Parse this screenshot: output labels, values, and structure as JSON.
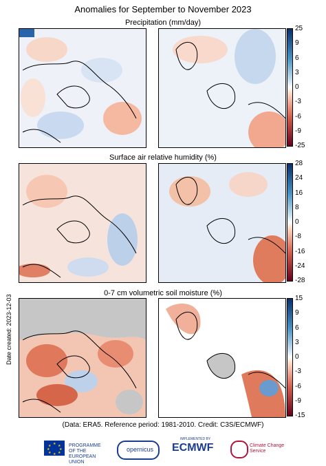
{
  "main_title": "Anomalies for September to November 2023",
  "panels": [
    {
      "title": "Precipitation (mm/day)",
      "ticks": [
        "25",
        "9",
        "6",
        "3",
        "0",
        "-3",
        "-6",
        "-9",
        "-25"
      ],
      "cbar": [
        "#08306b",
        "#2166ac",
        "#4393c3",
        "#92c5de",
        "#d1e5f0",
        "#fddbc7",
        "#f4a582",
        "#d6604d",
        "#b2182b",
        "#67001f"
      ]
    },
    {
      "title": "Surface air relative humidity (%)",
      "ticks": [
        "28",
        "24",
        "16",
        "8",
        "0",
        "-8",
        "-16",
        "-24",
        "-28"
      ],
      "cbar": [
        "#08306b",
        "#2166ac",
        "#4393c3",
        "#92c5de",
        "#d1e5f0",
        "#fddbc7",
        "#f4a582",
        "#d6604d",
        "#b2182b",
        "#67001f"
      ]
    },
    {
      "title": "0-7 cm volumetric soil moisture (%)",
      "ticks": [
        "15",
        "9",
        "6",
        "3",
        "0",
        "-3",
        "-6",
        "-9",
        "-15"
      ],
      "cbar": [
        "#08306b",
        "#2166ac",
        "#4393c3",
        "#92c5de",
        "#d1e5f0",
        "#fddbc7",
        "#f4a582",
        "#d6604d",
        "#b2182b",
        "#67001f"
      ]
    }
  ],
  "date_created": "Date created: 2023-12-03",
  "footer": "(Data: ERA5.  Reference period: 1981-2010.  Credit: C3S/ECMWF)",
  "logos": {
    "eu": "PROGRAMME OF THE EUROPEAN UNION",
    "copernicus": "opernicus",
    "implemented_by": "IMPLEMENTED BY",
    "ecmwf": "ECMWF",
    "ccs": "Climate Change Service"
  }
}
